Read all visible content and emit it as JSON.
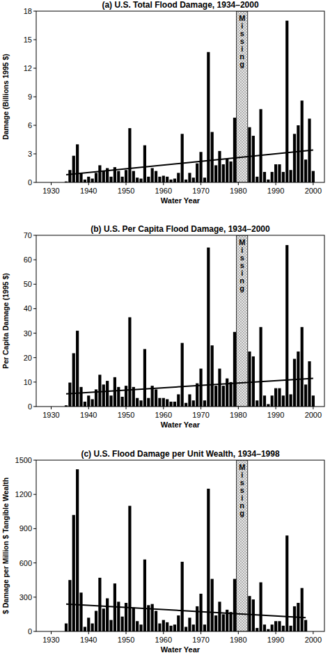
{
  "chart_data": [
    {
      "type": "bar",
      "title": "(a) U.S. Total Flood Damage, 1934–2000",
      "x_label": "Water Year",
      "y_label": "Damage (Billions 1995 $)",
      "xlim": [
        1926,
        2003
      ],
      "xticks": [
        1930,
        1940,
        1950,
        1960,
        1970,
        1980,
        1990,
        2000
      ],
      "ylim": [
        0,
        18
      ],
      "yticks": [
        0,
        3,
        6,
        9,
        12,
        15,
        18
      ],
      "grid": false,
      "series": [
        {
          "type": "bar",
          "color": "#000000",
          "x": [
            1934,
            1935,
            1936,
            1937,
            1938,
            1939,
            1940,
            1941,
            1942,
            1943,
            1944,
            1945,
            1946,
            1947,
            1948,
            1949,
            1950,
            1951,
            1952,
            1953,
            1954,
            1955,
            1956,
            1957,
            1958,
            1959,
            1960,
            1961,
            1962,
            1963,
            1964,
            1965,
            1966,
            1967,
            1968,
            1969,
            1970,
            1971,
            1972,
            1973,
            1974,
            1975,
            1976,
            1977,
            1978,
            1979,
            1980,
            1981,
            1982,
            1983,
            1984,
            1985,
            1986,
            1987,
            1988,
            1989,
            1990,
            1991,
            1992,
            1993,
            1994,
            1995,
            1996,
            1997,
            1998,
            1999,
            2000
          ],
          "values": [
            0.1,
            1.3,
            2.8,
            4.0,
            1.0,
            0.3,
            0.6,
            0.4,
            1.0,
            1.8,
            1.2,
            1.5,
            0.6,
            1.6,
            1.2,
            0.6,
            1.3,
            5.7,
            1.2,
            0.5,
            0.4,
            3.9,
            0.6,
            1.5,
            1.2,
            0.6,
            0.7,
            0.6,
            0.3,
            0.4,
            1.0,
            5.1,
            0.3,
            1.0,
            0.5,
            2.0,
            3.2,
            0.5,
            13.7,
            5.3,
            1.8,
            3.3,
            1.9,
            2.5,
            2.2,
            6.8,
            null,
            null,
            null,
            5.8,
            4.9,
            0.6,
            7.7,
            1.1,
            0.3,
            1.1,
            1.9,
            1.9,
            1.1,
            17.0,
            1.3,
            5.1,
            6.0,
            8.6,
            2.4,
            6.7,
            1.2
          ]
        },
        {
          "type": "line",
          "color": "#000000",
          "x": [
            1934,
            2000
          ],
          "values": [
            0.8,
            3.4
          ]
        }
      ],
      "annotations": [
        {
          "text": "Missing",
          "x": [
            1979.5,
            1982.5
          ]
        }
      ]
    },
    {
      "type": "bar",
      "title": "(b) U.S. Per Capita Flood Damage, 1934–2000",
      "x_label": "Water Year",
      "y_label": "Per Capita Damage (1995 $)",
      "xlim": [
        1926,
        2003
      ],
      "xticks": [
        1930,
        1940,
        1950,
        1960,
        1970,
        1980,
        1990,
        2000
      ],
      "ylim": [
        0,
        70
      ],
      "yticks": [
        0,
        10,
        20,
        30,
        40,
        50,
        60,
        70
      ],
      "grid": false,
      "series": [
        {
          "type": "bar",
          "color": "#000000",
          "x": [
            1934,
            1935,
            1936,
            1937,
            1938,
            1939,
            1940,
            1941,
            1942,
            1943,
            1944,
            1945,
            1946,
            1947,
            1948,
            1949,
            1950,
            1951,
            1952,
            1953,
            1954,
            1955,
            1956,
            1957,
            1958,
            1959,
            1960,
            1961,
            1962,
            1963,
            1964,
            1965,
            1966,
            1967,
            1968,
            1969,
            1970,
            1971,
            1972,
            1973,
            1974,
            1975,
            1976,
            1977,
            1978,
            1979,
            1980,
            1981,
            1982,
            1983,
            1984,
            1985,
            1986,
            1987,
            1988,
            1989,
            1990,
            1991,
            1992,
            1993,
            1994,
            1995,
            1996,
            1997,
            1998,
            1999,
            2000
          ],
          "values": [
            0.5,
            9.8,
            21.8,
            31,
            8,
            2,
            4.5,
            3,
            7,
            13,
            9,
            10.5,
            4.5,
            12,
            8,
            4,
            8.5,
            36.5,
            8,
            3.5,
            2.5,
            23.5,
            3.5,
            8.5,
            7,
            3.5,
            3.5,
            3,
            2,
            2,
            5,
            26,
            1.5,
            5,
            2.5,
            9.5,
            15.5,
            2.5,
            65,
            25,
            8.5,
            15.5,
            8.5,
            11.5,
            10,
            30.5,
            null,
            null,
            null,
            22.5,
            20.5,
            2.5,
            32.5,
            4.5,
            1,
            4.5,
            7.5,
            7.5,
            4.5,
            66,
            5,
            19.5,
            22.5,
            32.5,
            9,
            18.5,
            4.5
          ]
        },
        {
          "type": "line",
          "color": "#000000",
          "x": [
            1934,
            2000
          ],
          "values": [
            5.2,
            11.5
          ]
        }
      ],
      "annotations": [
        {
          "text": "Missing",
          "x": [
            1979.5,
            1982.5
          ]
        }
      ]
    },
    {
      "type": "bar",
      "title": "(c) U.S. Flood Damage per Unit Wealth, 1934–1998",
      "x_label": "Water Year",
      "y_label": "$ Damage per Million $ Tangible Wealth",
      "xlim": [
        1926,
        2003
      ],
      "xticks": [
        1930,
        1940,
        1950,
        1960,
        1970,
        1980,
        1990,
        2000
      ],
      "ylim": [
        0,
        1500
      ],
      "yticks": [
        0,
        300,
        600,
        900,
        1200,
        1500
      ],
      "grid": false,
      "series": [
        {
          "type": "bar",
          "color": "#000000",
          "x": [
            1934,
            1935,
            1936,
            1937,
            1938,
            1939,
            1940,
            1941,
            1942,
            1943,
            1944,
            1945,
            1946,
            1947,
            1948,
            1949,
            1950,
            1951,
            1952,
            1953,
            1954,
            1955,
            1956,
            1957,
            1958,
            1959,
            1960,
            1961,
            1962,
            1963,
            1964,
            1965,
            1966,
            1967,
            1968,
            1969,
            1970,
            1971,
            1972,
            1973,
            1974,
            1975,
            1976,
            1977,
            1978,
            1979,
            1980,
            1981,
            1982,
            1983,
            1984,
            1985,
            1986,
            1987,
            1988,
            1989,
            1990,
            1991,
            1992,
            1993,
            1994,
            1995,
            1996,
            1997,
            1998
          ],
          "values": [
            70,
            450,
            1020,
            1420,
            340,
            40,
            120,
            70,
            180,
            470,
            200,
            290,
            100,
            420,
            260,
            130,
            250,
            1100,
            210,
            90,
            60,
            630,
            230,
            240,
            180,
            70,
            100,
            80,
            50,
            60,
            140,
            610,
            40,
            120,
            60,
            220,
            330,
            60,
            1250,
            460,
            140,
            260,
            150,
            190,
            170,
            460,
            null,
            null,
            null,
            310,
            280,
            30,
            430,
            60,
            20,
            60,
            90,
            90,
            50,
            840,
            50,
            220,
            250,
            380,
            100
          ]
        },
        {
          "type": "line",
          "color": "#000000",
          "x": [
            1934,
            1998
          ],
          "values": [
            240,
            120
          ]
        }
      ],
      "annotations": [
        {
          "text": "Missing",
          "x": [
            1979.5,
            1982.5
          ]
        }
      ]
    }
  ]
}
